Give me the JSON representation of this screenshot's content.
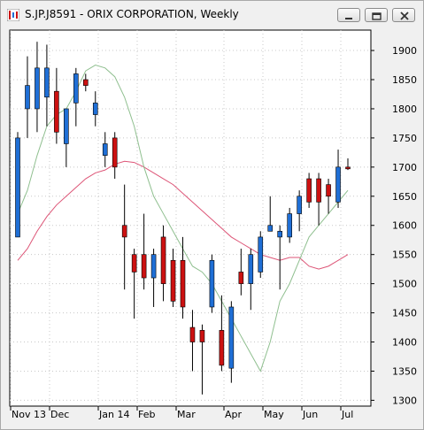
{
  "window": {
    "title": "S.JP.J8591 - ORIX CORPORATION, Weekly",
    "controls": [
      "minimize",
      "restore",
      "close"
    ]
  },
  "chart_data": {
    "type": "candlestick",
    "title": "",
    "ylim": [
      1290,
      1935
    ],
    "y_ticks": [
      1300,
      1350,
      1400,
      1450,
      1500,
      1550,
      1600,
      1650,
      1700,
      1750,
      1800,
      1850,
      1900
    ],
    "x_labels": [
      "Nov 13",
      "Dec",
      "Jan 14",
      "Feb",
      "Mar",
      "Apr",
      "May",
      "Jun",
      "Jul"
    ],
    "grid": "dotted",
    "colors": {
      "up": "#1f6fd6",
      "down": "#cc1111",
      "ma_fast": "#8fbf8f",
      "ma_slow": "#dd5577",
      "axis_text": "#000000"
    },
    "candles": [
      {
        "o": 1580,
        "h": 1760,
        "l": 1580,
        "c": 1750
      },
      {
        "o": 1800,
        "h": 1890,
        "l": 1750,
        "c": 1840
      },
      {
        "o": 1800,
        "h": 1915,
        "l": 1760,
        "c": 1870
      },
      {
        "o": 1820,
        "h": 1910,
        "l": 1770,
        "c": 1870
      },
      {
        "o": 1830,
        "h": 1870,
        "l": 1740,
        "c": 1760
      },
      {
        "o": 1740,
        "h": 1800,
        "l": 1700,
        "c": 1800
      },
      {
        "o": 1810,
        "h": 1870,
        "l": 1770,
        "c": 1860
      },
      {
        "o": 1850,
        "h": 1860,
        "l": 1830,
        "c": 1840
      },
      {
        "o": 1790,
        "h": 1830,
        "l": 1770,
        "c": 1810
      },
      {
        "o": 1720,
        "h": 1760,
        "l": 1700,
        "c": 1740
      },
      {
        "o": 1750,
        "h": 1760,
        "l": 1680,
        "c": 1700
      },
      {
        "o": 1600,
        "h": 1670,
        "l": 1490,
        "c": 1580
      },
      {
        "o": 1550,
        "h": 1560,
        "l": 1440,
        "c": 1520
      },
      {
        "o": 1550,
        "h": 1620,
        "l": 1490,
        "c": 1510
      },
      {
        "o": 1510,
        "h": 1560,
        "l": 1460,
        "c": 1550
      },
      {
        "o": 1580,
        "h": 1600,
        "l": 1470,
        "c": 1500
      },
      {
        "o": 1540,
        "h": 1560,
        "l": 1460,
        "c": 1470
      },
      {
        "o": 1540,
        "h": 1580,
        "l": 1440,
        "c": 1460
      },
      {
        "o": 1425,
        "h": 1455,
        "l": 1350,
        "c": 1400
      },
      {
        "o": 1420,
        "h": 1430,
        "l": 1310,
        "c": 1400
      },
      {
        "o": 1460,
        "h": 1550,
        "l": 1450,
        "c": 1540
      },
      {
        "o": 1420,
        "h": 1480,
        "l": 1350,
        "c": 1360
      },
      {
        "o": 1355,
        "h": 1470,
        "l": 1330,
        "c": 1460
      },
      {
        "o": 1520,
        "h": 1560,
        "l": 1480,
        "c": 1500
      },
      {
        "o": 1500,
        "h": 1560,
        "l": 1455,
        "c": 1550
      },
      {
        "o": 1520,
        "h": 1590,
        "l": 1510,
        "c": 1580
      },
      {
        "o": 1590,
        "h": 1650,
        "l": 1590,
        "c": 1600
      },
      {
        "o": 1580,
        "h": 1600,
        "l": 1490,
        "c": 1590
      },
      {
        "o": 1580,
        "h": 1630,
        "l": 1570,
        "c": 1620
      },
      {
        "o": 1620,
        "h": 1660,
        "l": 1590,
        "c": 1650
      },
      {
        "o": 1680,
        "h": 1690,
        "l": 1630,
        "c": 1640
      },
      {
        "o": 1680,
        "h": 1690,
        "l": 1600,
        "c": 1640
      },
      {
        "o": 1670,
        "h": 1680,
        "l": 1620,
        "c": 1650
      },
      {
        "o": 1640,
        "h": 1730,
        "l": 1630,
        "c": 1700
      },
      {
        "o": 1700,
        "h": 1715,
        "l": 1695,
        "c": 1697
      }
    ],
    "ma_fast": [
      1620,
      1660,
      1720,
      1770,
      1790,
      1800,
      1830,
      1865,
      1875,
      1870,
      1855,
      1820,
      1770,
      1700,
      1650,
      1620,
      1590,
      1560,
      1530,
      1520,
      1500,
      1470,
      1440,
      1410,
      1380,
      1350,
      1400,
      1470,
      1500,
      1540,
      1580,
      1600,
      1620,
      1640,
      1660
    ],
    "ma_slow": [
      1540,
      1560,
      1590,
      1615,
      1635,
      1650,
      1665,
      1680,
      1690,
      1695,
      1705,
      1710,
      1708,
      1700,
      1690,
      1680,
      1670,
      1655,
      1640,
      1625,
      1610,
      1595,
      1580,
      1570,
      1560,
      1550,
      1545,
      1540,
      1545,
      1545,
      1530,
      1525,
      1530,
      1540,
      1550
    ]
  }
}
